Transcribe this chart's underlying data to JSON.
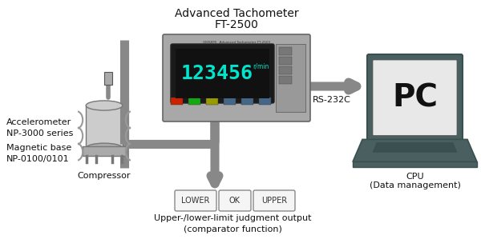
{
  "title_line1": "Advanced Tachometer",
  "title_line2": "FT-2500",
  "bg_color": "#ffffff",
  "display_text": "123456",
  "display_unit": "r/min",
  "display_color": "#00e5cc",
  "tach_color": "#a8a8a8",
  "screen_bg": "#111111",
  "pc_label": "PC",
  "pc_sub_line1": "CPU",
  "pc_sub_line2": "(Data management)",
  "pc_body_color": "#4a6060",
  "pc_screen_color": "#e8e8e8",
  "accelerometer_label": "Accelerometer\nNP-3000 series",
  "magnetic_base_label": "Magnetic base\nNP-0100/0101",
  "compressor_label": "Compressor",
  "rs232c_label": "RS-232C",
  "comparator_label": "Upper-/lower-limit judgment output\n(comparator function)",
  "arrow_color": "#888888",
  "lower_label": "LOWER",
  "ok_label": "OK",
  "upper_label": "UPPER",
  "comp_color": "#cccccc",
  "comp_dark": "#aaaaaa"
}
